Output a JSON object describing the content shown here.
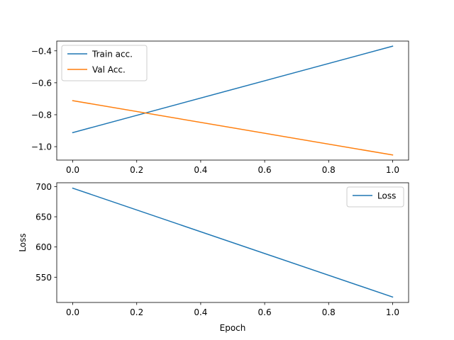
{
  "chart_data": [
    {
      "type": "line",
      "title": "",
      "xlabel": "",
      "ylabel": "",
      "xlim": [
        -0.05,
        1.05
      ],
      "ylim": [
        -1.084,
        -0.339
      ],
      "xticks": [
        0.0,
        0.2,
        0.4,
        0.6,
        0.8,
        1.0
      ],
      "xtick_labels": [
        "0.0",
        "0.2",
        "0.4",
        "0.6",
        "0.8",
        "1.0"
      ],
      "yticks": [
        -1.0,
        -0.8,
        -0.6,
        -0.4
      ],
      "ytick_labels": [
        "−1.0",
        "−0.8",
        "−0.6",
        "−0.4"
      ],
      "legend": "top-left",
      "grid": false,
      "series": [
        {
          "name": "Train acc.",
          "color": "#1f77b4",
          "x": [
            0,
            1
          ],
          "values": [
            -0.912,
            -0.371
          ]
        },
        {
          "name": "Val Acc.",
          "color": "#ff7f0e",
          "x": [
            0,
            1
          ],
          "values": [
            -0.712,
            -1.052
          ]
        }
      ]
    },
    {
      "type": "line",
      "title": "",
      "xlabel": "Epoch",
      "ylabel": "Loss",
      "xlim": [
        -0.05,
        1.05
      ],
      "ylim": [
        508.2,
        706.3
      ],
      "xticks": [
        0.0,
        0.2,
        0.4,
        0.6,
        0.8,
        1.0
      ],
      "xtick_labels": [
        "0.0",
        "0.2",
        "0.4",
        "0.6",
        "0.8",
        "1.0"
      ],
      "yticks": [
        550,
        600,
        650,
        700
      ],
      "ytick_labels": [
        "550",
        "600",
        "650",
        "700"
      ],
      "legend": "top-right",
      "grid": false,
      "series": [
        {
          "name": "Loss",
          "color": "#1f77b4",
          "x": [
            0,
            1
          ],
          "values": [
            697.3,
            517.2
          ]
        }
      ]
    }
  ]
}
